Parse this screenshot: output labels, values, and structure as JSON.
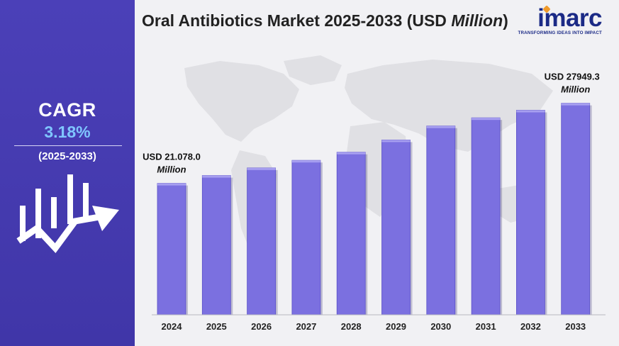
{
  "sidebar": {
    "cagr_label": "CAGR",
    "cagr_value": "3.18%",
    "cagr_period": "(2025-2033)"
  },
  "header": {
    "title": "Oral Antibiotics Market 2025-2033 (USD ",
    "title_italic": "Million",
    "title_end": ")"
  },
  "logo": {
    "word": "imarc",
    "tagline": "TRANSFORMING IDEAS INTO IMPACT"
  },
  "colors": {
    "sidebar_bg": "#4b40b8",
    "cagr_value": "#7fc6ff",
    "bar_fill": "#7b70e0",
    "bar_top": "#a79ff0",
    "logo_text": "#1b2a86",
    "logo_accent": "#f09a2b"
  },
  "chart_data": {
    "type": "bar",
    "title": "Oral Antibiotics Market 2025-2033 (USD Million)",
    "categories": [
      "2024",
      "2025",
      "2026",
      "2027",
      "2028",
      "2029",
      "2030",
      "2031",
      "2032",
      "2033"
    ],
    "values": [
      21078.0,
      21750,
      22400,
      23050,
      23750,
      24800,
      26000,
      26700,
      27350,
      27949.3
    ],
    "ylim": [
      9800,
      28900
    ],
    "grid": false,
    "annotations": [
      {
        "index": 0,
        "line1": "USD 21.078.0",
        "line2": "Million"
      },
      {
        "index": 9,
        "line1": "USD 27949.3",
        "line2": "Million"
      }
    ]
  }
}
